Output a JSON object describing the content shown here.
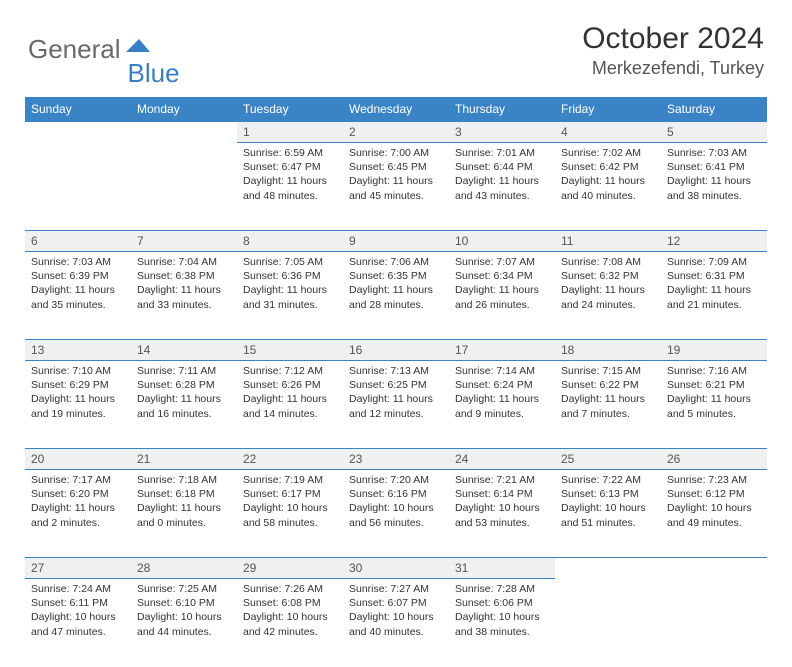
{
  "logo": {
    "word1": "General",
    "word2": "Blue",
    "color1": "#6a6a6a",
    "color2": "#3a7fc4"
  },
  "title": "October 2024",
  "location": "Merkezefendi, Turkey",
  "colors": {
    "header_blue": "#3a84c5",
    "daynum_bg": "#eef0f2",
    "text": "#333333",
    "location_text": "#555555"
  },
  "dayNames": [
    "Sunday",
    "Monday",
    "Tuesday",
    "Wednesday",
    "Thursday",
    "Friday",
    "Saturday"
  ],
  "firstDayOffset": 2,
  "daysInMonth": 31,
  "days": {
    "1": {
      "sunrise": "6:59 AM",
      "sunset": "6:47 PM",
      "daylight": "11 hours and 48 minutes."
    },
    "2": {
      "sunrise": "7:00 AM",
      "sunset": "6:45 PM",
      "daylight": "11 hours and 45 minutes."
    },
    "3": {
      "sunrise": "7:01 AM",
      "sunset": "6:44 PM",
      "daylight": "11 hours and 43 minutes."
    },
    "4": {
      "sunrise": "7:02 AM",
      "sunset": "6:42 PM",
      "daylight": "11 hours and 40 minutes."
    },
    "5": {
      "sunrise": "7:03 AM",
      "sunset": "6:41 PM",
      "daylight": "11 hours and 38 minutes."
    },
    "6": {
      "sunrise": "7:03 AM",
      "sunset": "6:39 PM",
      "daylight": "11 hours and 35 minutes."
    },
    "7": {
      "sunrise": "7:04 AM",
      "sunset": "6:38 PM",
      "daylight": "11 hours and 33 minutes."
    },
    "8": {
      "sunrise": "7:05 AM",
      "sunset": "6:36 PM",
      "daylight": "11 hours and 31 minutes."
    },
    "9": {
      "sunrise": "7:06 AM",
      "sunset": "6:35 PM",
      "daylight": "11 hours and 28 minutes."
    },
    "10": {
      "sunrise": "7:07 AM",
      "sunset": "6:34 PM",
      "daylight": "11 hours and 26 minutes."
    },
    "11": {
      "sunrise": "7:08 AM",
      "sunset": "6:32 PM",
      "daylight": "11 hours and 24 minutes."
    },
    "12": {
      "sunrise": "7:09 AM",
      "sunset": "6:31 PM",
      "daylight": "11 hours and 21 minutes."
    },
    "13": {
      "sunrise": "7:10 AM",
      "sunset": "6:29 PM",
      "daylight": "11 hours and 19 minutes."
    },
    "14": {
      "sunrise": "7:11 AM",
      "sunset": "6:28 PM",
      "daylight": "11 hours and 16 minutes."
    },
    "15": {
      "sunrise": "7:12 AM",
      "sunset": "6:26 PM",
      "daylight": "11 hours and 14 minutes."
    },
    "16": {
      "sunrise": "7:13 AM",
      "sunset": "6:25 PM",
      "daylight": "11 hours and 12 minutes."
    },
    "17": {
      "sunrise": "7:14 AM",
      "sunset": "6:24 PM",
      "daylight": "11 hours and 9 minutes."
    },
    "18": {
      "sunrise": "7:15 AM",
      "sunset": "6:22 PM",
      "daylight": "11 hours and 7 minutes."
    },
    "19": {
      "sunrise": "7:16 AM",
      "sunset": "6:21 PM",
      "daylight": "11 hours and 5 minutes."
    },
    "20": {
      "sunrise": "7:17 AM",
      "sunset": "6:20 PM",
      "daylight": "11 hours and 2 minutes."
    },
    "21": {
      "sunrise": "7:18 AM",
      "sunset": "6:18 PM",
      "daylight": "11 hours and 0 minutes."
    },
    "22": {
      "sunrise": "7:19 AM",
      "sunset": "6:17 PM",
      "daylight": "10 hours and 58 minutes."
    },
    "23": {
      "sunrise": "7:20 AM",
      "sunset": "6:16 PM",
      "daylight": "10 hours and 56 minutes."
    },
    "24": {
      "sunrise": "7:21 AM",
      "sunset": "6:14 PM",
      "daylight": "10 hours and 53 minutes."
    },
    "25": {
      "sunrise": "7:22 AM",
      "sunset": "6:13 PM",
      "daylight": "10 hours and 51 minutes."
    },
    "26": {
      "sunrise": "7:23 AM",
      "sunset": "6:12 PM",
      "daylight": "10 hours and 49 minutes."
    },
    "27": {
      "sunrise": "7:24 AM",
      "sunset": "6:11 PM",
      "daylight": "10 hours and 47 minutes."
    },
    "28": {
      "sunrise": "7:25 AM",
      "sunset": "6:10 PM",
      "daylight": "10 hours and 44 minutes."
    },
    "29": {
      "sunrise": "7:26 AM",
      "sunset": "6:08 PM",
      "daylight": "10 hours and 42 minutes."
    },
    "30": {
      "sunrise": "7:27 AM",
      "sunset": "6:07 PM",
      "daylight": "10 hours and 40 minutes."
    },
    "31": {
      "sunrise": "7:28 AM",
      "sunset": "6:06 PM",
      "daylight": "10 hours and 38 minutes."
    }
  },
  "labels": {
    "sunrise": "Sunrise: ",
    "sunset": "Sunset: ",
    "daylight": "Daylight: "
  }
}
